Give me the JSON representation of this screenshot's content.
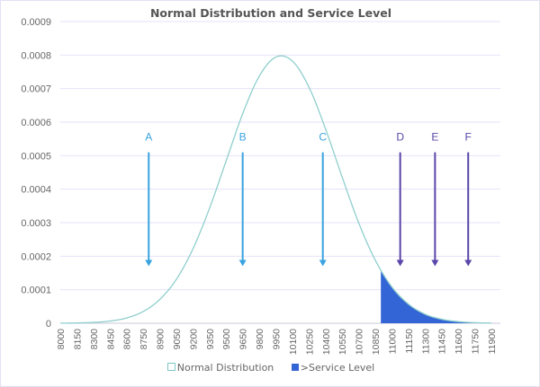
{
  "chart_data": {
    "type": "area",
    "title": "Normal Distribution and Service Level",
    "xlabel": "",
    "ylabel": "",
    "ylim": [
      0,
      0.0009
    ],
    "yticks": [
      "0",
      "0.0001",
      "0.0002",
      "0.0003",
      "0.0004",
      "0.0005",
      "0.0006",
      "0.0007",
      "0.0008",
      "0.0009"
    ],
    "categories": [
      8000,
      8150,
      8300,
      8450,
      8600,
      8750,
      8900,
      9050,
      9200,
      9350,
      9500,
      9650,
      9800,
      9950,
      10100,
      10250,
      10400,
      10550,
      10700,
      10850,
      11000,
      11150,
      11300,
      11450,
      11600,
      11750,
      11900
    ],
    "series": [
      {
        "name": "Normal Distribution",
        "color": "#8fcfcd",
        "values": [
          3e-07,
          9e-07,
          2.5e-06,
          6.5e-06,
          1.58e-05,
          3.5e-05,
          7.1e-05,
          0.000131,
          0.000222,
          0.000343,
          0.000484,
          0.000625,
          0.000737,
          0.000794,
          0.000782,
          0.000704,
          0.000579,
          0.000436,
          0.000299,
          0.000188,
          0.000108,
          5.7e-05,
          2.7e-05,
          1.19e-05,
          4.8e-06,
          1.7e-06,
          6e-07
        ]
      },
      {
        "name": ">Service Level",
        "color": "#3465d6",
        "start_x": 10900
      }
    ],
    "annotations": [
      {
        "label": "A",
        "x": 8800,
        "y_from": 0.00051,
        "y_to": 0.00017,
        "color": "#3aa3df"
      },
      {
        "label": "B",
        "x": 9650,
        "y_from": 0.00051,
        "y_to": 0.00017,
        "color": "#3aa3df"
      },
      {
        "label": "C",
        "x": 10375,
        "y_from": 0.00051,
        "y_to": 0.00017,
        "color": "#3aa3df"
      },
      {
        "label": "D",
        "x": 11075,
        "y_from": 0.00051,
        "y_to": 0.00017,
        "color": "#5a46a8"
      },
      {
        "label": "E",
        "x": 11390,
        "y_from": 0.00051,
        "y_to": 0.00017,
        "color": "#5a46a8"
      },
      {
        "label": "F",
        "x": 11690,
        "y_from": 0.00051,
        "y_to": 0.00017,
        "color": "#5a46a8"
      }
    ],
    "grid": true,
    "legend": "bottom"
  }
}
